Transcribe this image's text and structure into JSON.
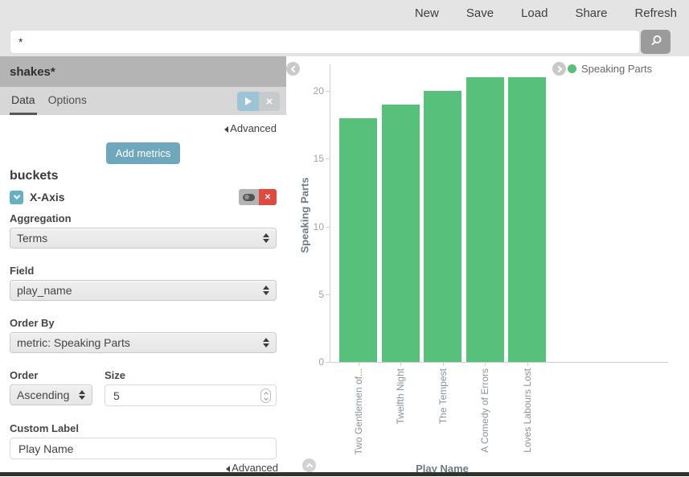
{
  "topbar": {
    "items": [
      {
        "label": "New"
      },
      {
        "label": "Save"
      },
      {
        "label": "Load"
      },
      {
        "label": "Share"
      },
      {
        "label": "Refresh"
      }
    ]
  },
  "search": {
    "value": "*"
  },
  "icons": {
    "search": "magnifier-glyph",
    "apply": "play-triangle",
    "discard": "x-cross",
    "bucket_collapse": "chevron-down",
    "bucket_disable": "toggle-switch",
    "bucket_remove": "x-cross",
    "sidebar_collapse": "chevron-left-circle",
    "legend_toggle": "chevron-right-circle",
    "panel_collapse": "chevron-up-circle"
  },
  "sidebar": {
    "title": "shakes*",
    "tabs": [
      {
        "label": "Data"
      },
      {
        "label": "Options"
      }
    ],
    "discard_glyph": "✕",
    "advanced_top": "Advanced",
    "advanced_bottom": "Advanced",
    "add_metrics_label": "Add metrics",
    "buckets_heading": "buckets",
    "bucket": {
      "name": "X-Axis",
      "remove_glyph": "✕",
      "aggregation": {
        "label": "Aggregation",
        "value": "Terms"
      },
      "field": {
        "label": "Field",
        "value": "play_name"
      },
      "order_by": {
        "label": "Order By",
        "value": "metric: Speaking Parts"
      },
      "order": {
        "label": "Order",
        "value": "Ascending"
      },
      "size": {
        "label": "Size",
        "value": "5"
      },
      "custom_label": {
        "label": "Custom Label",
        "value": "Play Name"
      }
    }
  },
  "chart_data": {
    "type": "bar",
    "title": "",
    "series_name": "Speaking Parts",
    "categories": [
      "Two Gentlemen of...",
      "Twelfth Night",
      "The Tempest",
      "A Comedy of Errors",
      "Loves Labours Lost"
    ],
    "values": [
      18,
      19,
      20,
      21,
      21
    ],
    "xlabel": "Play Name",
    "ylabel": "Speaking Parts",
    "ylim": [
      0,
      22
    ],
    "yticks": [
      0,
      5,
      10,
      15,
      20
    ],
    "bar_color": "#57c17b",
    "grid": false,
    "legend_position": "top-right",
    "legend_label": "Speaking Parts"
  }
}
